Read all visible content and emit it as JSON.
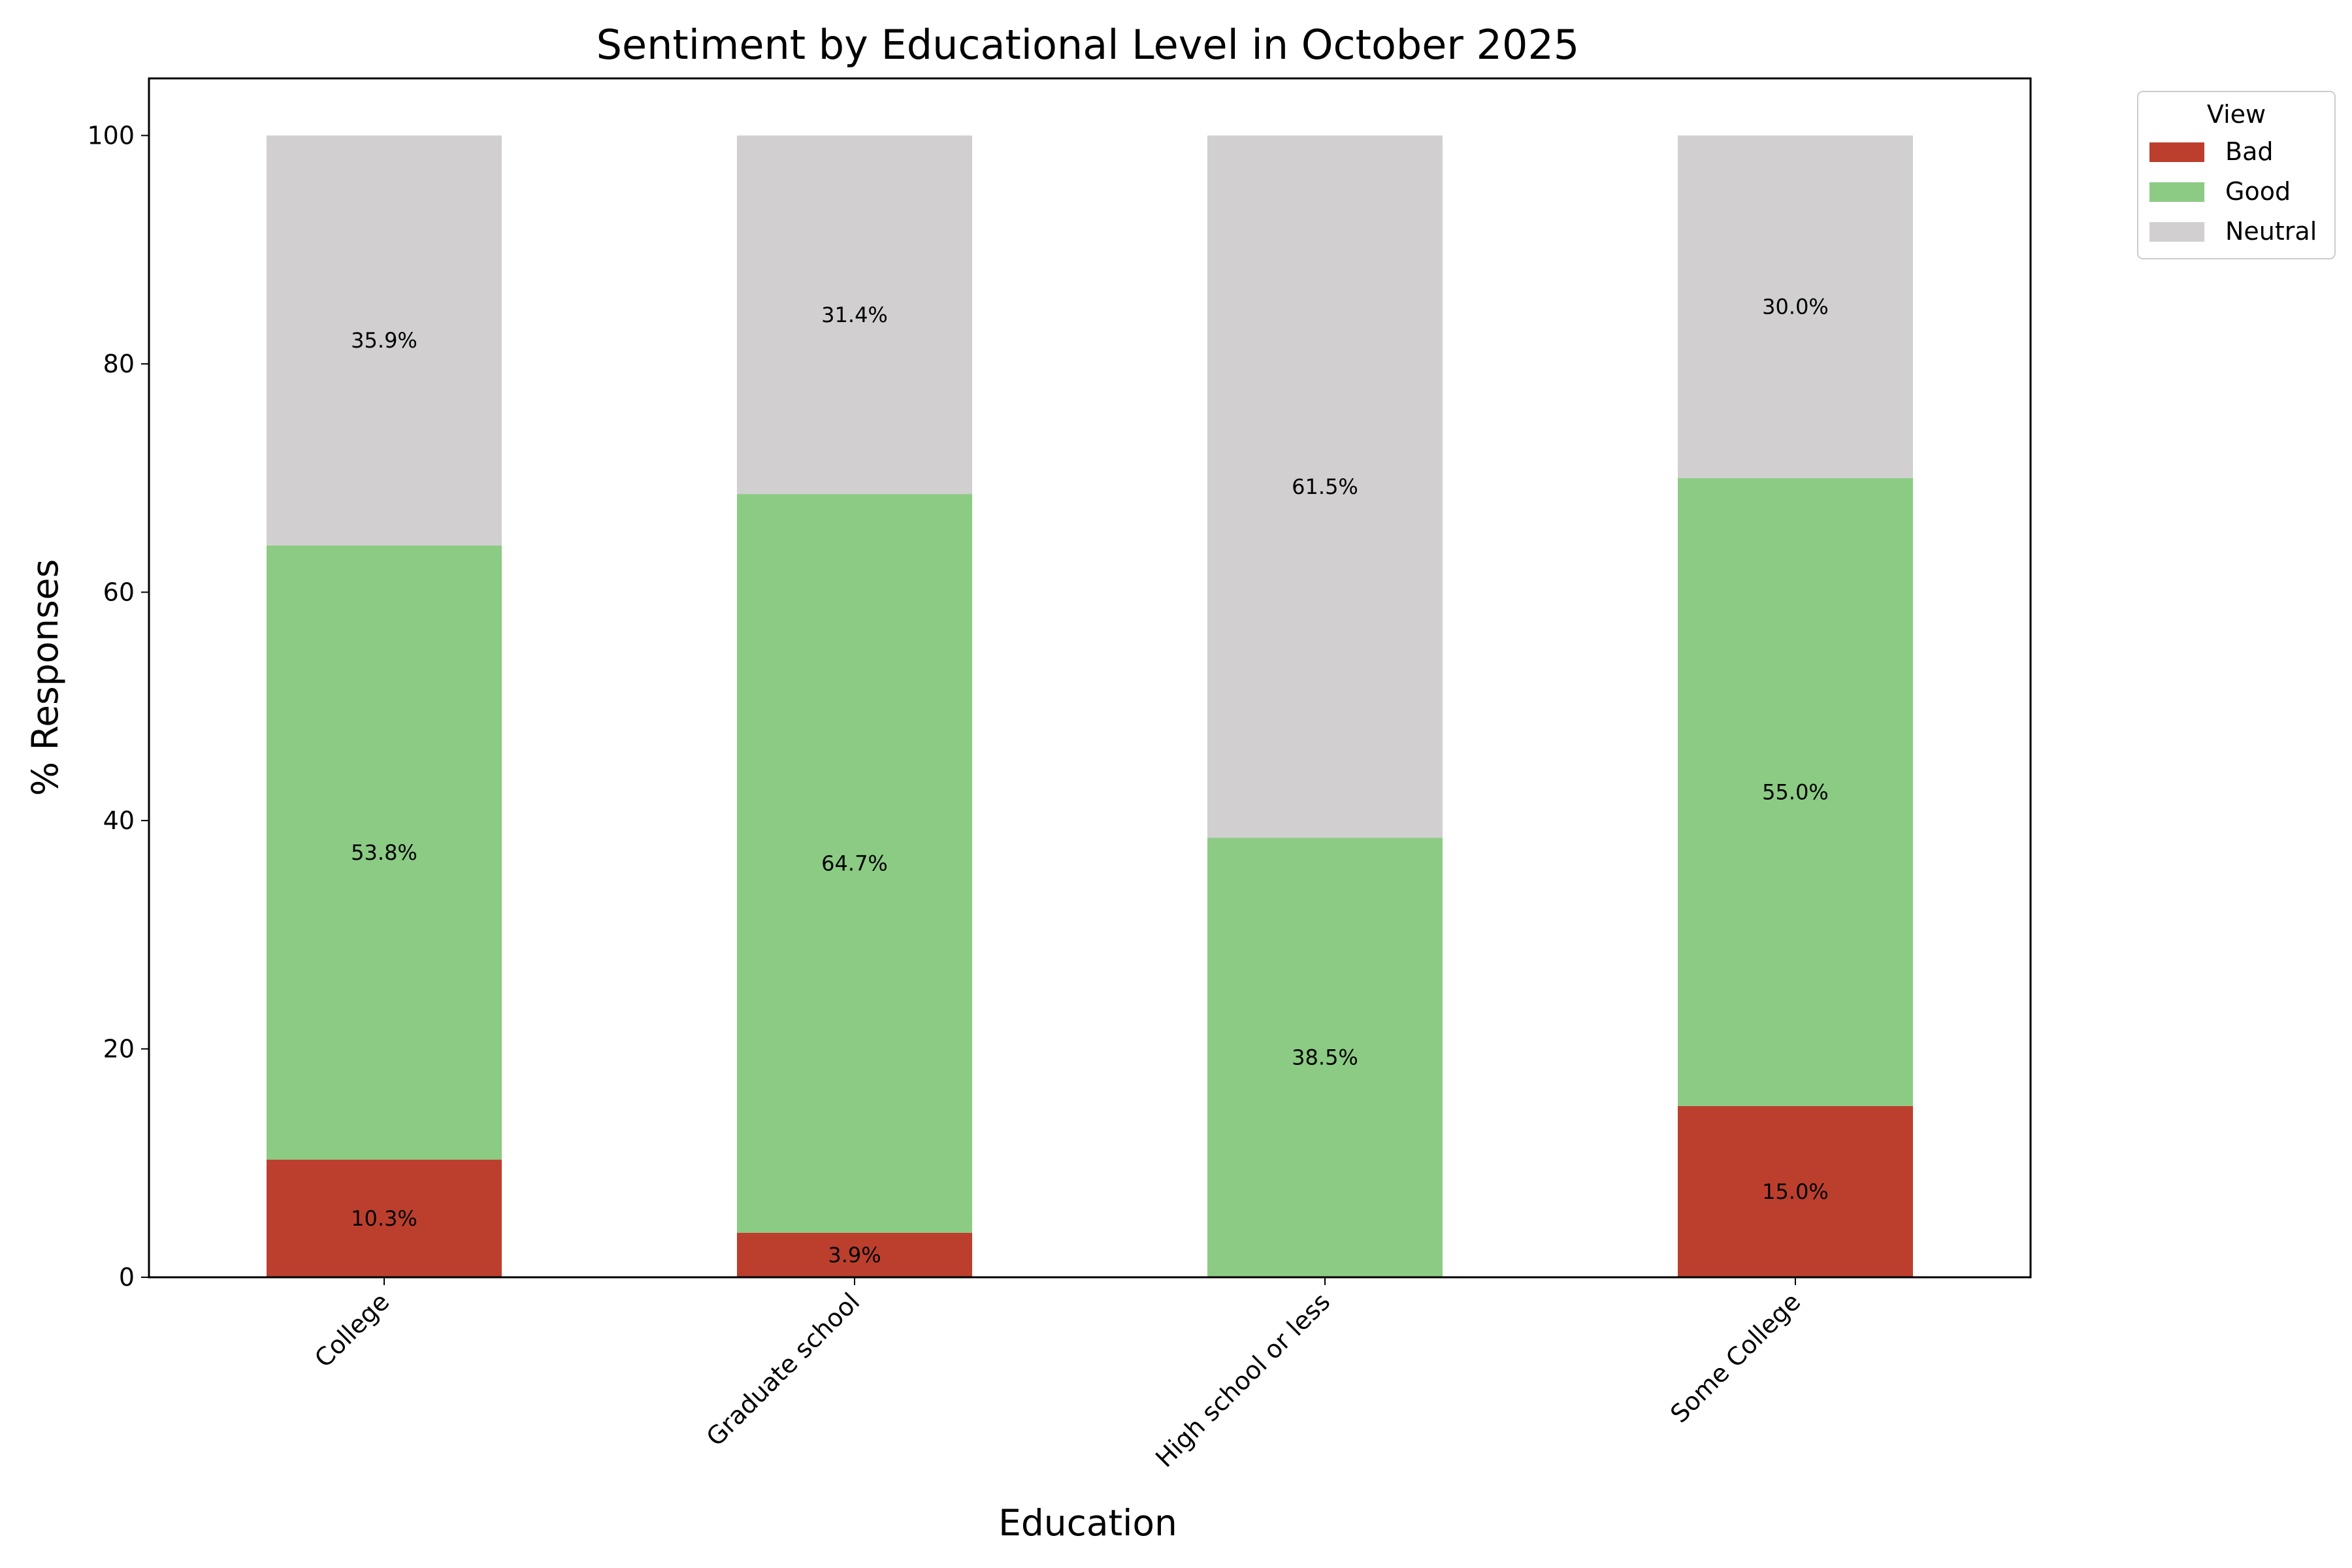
{
  "chart_data": {
    "type": "bar",
    "stacked": true,
    "title": "Sentiment by Educational Level in October 2025",
    "xlabel": "Education",
    "ylabel": "% Responses",
    "ylim": [
      0,
      105
    ],
    "yticks": [
      0,
      20,
      40,
      60,
      80,
      100
    ],
    "categories": [
      "College",
      "Graduate school",
      "High school or less",
      "Some College"
    ],
    "series": [
      {
        "name": "Bad",
        "color": "#bc3f2e",
        "values": [
          10.3,
          3.9,
          0,
          15.0
        ],
        "labels": [
          "10.3%",
          "3.9%",
          "",
          "15.0%"
        ]
      },
      {
        "name": "Good",
        "color": "#8ccb84",
        "values": [
          53.8,
          64.7,
          38.5,
          55.0
        ],
        "labels": [
          "53.8%",
          "64.7%",
          "38.5%",
          "55.0%"
        ]
      },
      {
        "name": "Neutral",
        "color": "#d1cfd0",
        "values": [
          35.9,
          31.4,
          61.5,
          30.0
        ],
        "labels": [
          "35.9%",
          "31.4%",
          "61.5%",
          "30.0%"
        ]
      }
    ],
    "legend": {
      "title": "View",
      "position": "outside-top-right"
    }
  }
}
